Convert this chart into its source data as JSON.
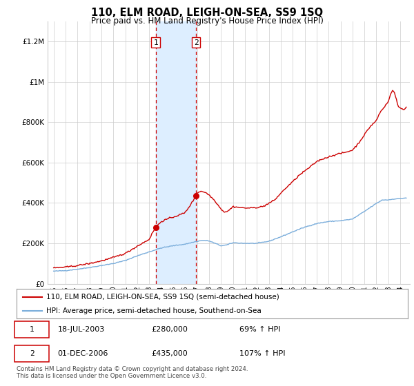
{
  "title": "110, ELM ROAD, LEIGH-ON-SEA, SS9 1SQ",
  "subtitle": "Price paid vs. HM Land Registry's House Price Index (HPI)",
  "ylabel_ticks": [
    "£0",
    "£200K",
    "£400K",
    "£600K",
    "£800K",
    "£1M",
    "£1.2M"
  ],
  "ytick_values": [
    0,
    200000,
    400000,
    600000,
    800000,
    1000000,
    1200000
  ],
  "ylim": [
    0,
    1300000
  ],
  "xlim_start": 1994.5,
  "xlim_end": 2024.8,
  "xtick_years": [
    1995,
    1996,
    1997,
    1998,
    1999,
    2000,
    2001,
    2002,
    2003,
    2004,
    2005,
    2006,
    2007,
    2008,
    2009,
    2010,
    2011,
    2012,
    2013,
    2014,
    2015,
    2016,
    2017,
    2018,
    2019,
    2020,
    2021,
    2022,
    2023,
    2024
  ],
  "sale1_x": 2003.54,
  "sale1_y": 280000,
  "sale1_label": "1",
  "sale2_x": 2006.92,
  "sale2_y": 435000,
  "sale2_label": "2",
  "shade_x1": 2003.54,
  "shade_x2": 2006.92,
  "red_color": "#cc0000",
  "blue_color": "#7aaddb",
  "shade_color": "#ddeeff",
  "legend_line1": "110, ELM ROAD, LEIGH-ON-SEA, SS9 1SQ (semi-detached house)",
  "legend_line2": "HPI: Average price, semi-detached house, Southend-on-Sea",
  "table_row1": [
    "1",
    "18-JUL-2003",
    "£280,000",
    "69% ↑ HPI"
  ],
  "table_row2": [
    "2",
    "01-DEC-2006",
    "£435,000",
    "107% ↑ HPI"
  ],
  "footer": "Contains HM Land Registry data © Crown copyright and database right 2024.\nThis data is licensed under the Open Government Licence v3.0.",
  "background_color": "#ffffff",
  "grid_color": "#cccccc",
  "hpi_base": [
    [
      1995.0,
      62000
    ],
    [
      1996.0,
      65000
    ],
    [
      1997.0,
      72000
    ],
    [
      1998.0,
      80000
    ],
    [
      1999.0,
      90000
    ],
    [
      2000.0,
      100000
    ],
    [
      2001.0,
      115000
    ],
    [
      2002.0,
      138000
    ],
    [
      2003.0,
      158000
    ],
    [
      2004.0,
      177000
    ],
    [
      2005.0,
      188000
    ],
    [
      2006.0,
      196000
    ],
    [
      2007.0,
      210000
    ],
    [
      2007.5,
      215000
    ],
    [
      2008.0,
      212000
    ],
    [
      2008.5,
      200000
    ],
    [
      2009.0,
      188000
    ],
    [
      2009.5,
      192000
    ],
    [
      2010.0,
      203000
    ],
    [
      2011.0,
      200000
    ],
    [
      2012.0,
      200000
    ],
    [
      2013.0,
      210000
    ],
    [
      2014.0,
      232000
    ],
    [
      2015.0,
      257000
    ],
    [
      2016.0,
      280000
    ],
    [
      2017.0,
      298000
    ],
    [
      2018.0,
      308000
    ],
    [
      2019.0,
      312000
    ],
    [
      2020.0,
      320000
    ],
    [
      2021.0,
      358000
    ],
    [
      2022.0,
      398000
    ],
    [
      2022.5,
      415000
    ],
    [
      2023.0,
      415000
    ],
    [
      2023.5,
      420000
    ],
    [
      2024.0,
      422000
    ],
    [
      2024.5,
      425000
    ]
  ],
  "price_base": [
    [
      1995.0,
      78000
    ],
    [
      1996.0,
      82000
    ],
    [
      1997.0,
      90000
    ],
    [
      1998.0,
      100000
    ],
    [
      1999.0,
      113000
    ],
    [
      2000.0,
      130000
    ],
    [
      2001.0,
      150000
    ],
    [
      2002.0,
      186000
    ],
    [
      2003.0,
      220000
    ],
    [
      2003.3,
      255000
    ],
    [
      2003.54,
      280000
    ],
    [
      2003.8,
      295000
    ],
    [
      2004.0,
      308000
    ],
    [
      2004.5,
      320000
    ],
    [
      2005.0,
      330000
    ],
    [
      2005.5,
      340000
    ],
    [
      2006.0,
      352000
    ],
    [
      2006.5,
      395000
    ],
    [
      2006.92,
      435000
    ],
    [
      2007.0,
      450000
    ],
    [
      2007.3,
      458000
    ],
    [
      2007.6,
      455000
    ],
    [
      2008.0,
      440000
    ],
    [
      2008.5,
      410000
    ],
    [
      2009.0,
      370000
    ],
    [
      2009.3,
      355000
    ],
    [
      2009.6,
      360000
    ],
    [
      2010.0,
      382000
    ],
    [
      2010.5,
      378000
    ],
    [
      2011.0,
      375000
    ],
    [
      2011.5,
      375000
    ],
    [
      2012.0,
      378000
    ],
    [
      2012.5,
      382000
    ],
    [
      2013.0,
      398000
    ],
    [
      2013.5,
      415000
    ],
    [
      2014.0,
      448000
    ],
    [
      2014.5,
      478000
    ],
    [
      2015.0,
      505000
    ],
    [
      2015.5,
      535000
    ],
    [
      2016.0,
      558000
    ],
    [
      2016.5,
      580000
    ],
    [
      2017.0,
      605000
    ],
    [
      2017.5,
      618000
    ],
    [
      2018.0,
      628000
    ],
    [
      2018.5,
      638000
    ],
    [
      2019.0,
      645000
    ],
    [
      2019.5,
      652000
    ],
    [
      2020.0,
      662000
    ],
    [
      2020.5,
      695000
    ],
    [
      2021.0,
      738000
    ],
    [
      2021.5,
      780000
    ],
    [
      2022.0,
      808000
    ],
    [
      2022.3,
      848000
    ],
    [
      2022.6,
      870000
    ],
    [
      2022.9,
      895000
    ],
    [
      2023.0,
      900000
    ],
    [
      2023.2,
      945000
    ],
    [
      2023.4,
      960000
    ],
    [
      2023.6,
      930000
    ],
    [
      2023.8,
      880000
    ],
    [
      2024.0,
      870000
    ],
    [
      2024.3,
      860000
    ],
    [
      2024.5,
      875000
    ]
  ]
}
